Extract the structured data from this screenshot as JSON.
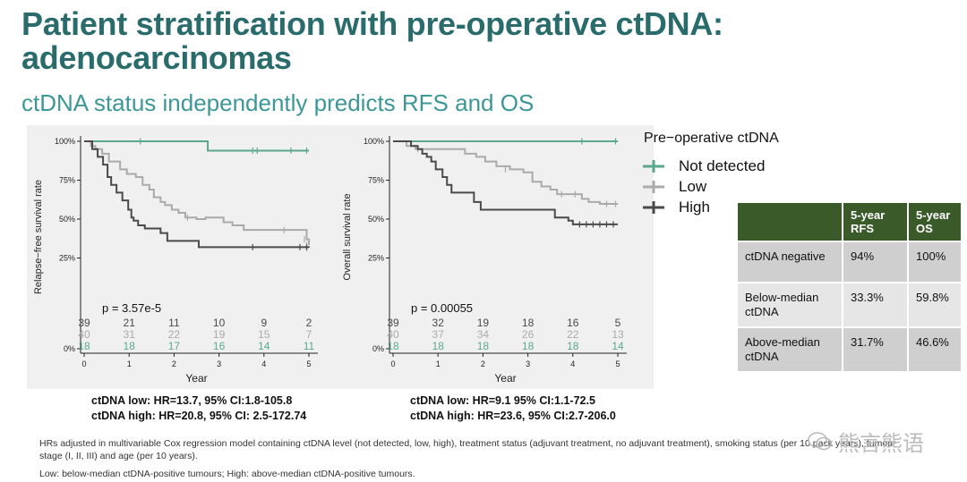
{
  "title_line1": "Patient stratification with pre-operative ctDNA:",
  "title_line2": "adenocarcinomas",
  "subtitle": "ctDNA status independently predicts RFS and OS",
  "legend": {
    "title": "Pre−operative ctDNA",
    "items": [
      {
        "label": "Not detected",
        "color": "#5aa98c"
      },
      {
        "label": "Low",
        "color": "#aaaaaa"
      },
      {
        "label": "High",
        "color": "#4a4a4a"
      }
    ]
  },
  "table": {
    "headers": [
      "",
      "5-year RFS",
      "5-year OS"
    ],
    "rows": [
      [
        "ctDNA negative",
        "94%",
        "100%"
      ],
      [
        "Below-median ctDNA",
        "33.3%",
        "59.8%"
      ],
      [
        "Above-median ctDNA",
        "31.7%",
        "46.6%"
      ]
    ]
  },
  "rfs_hr": {
    "low": "ctDNA low: HR=13.7, 95% CI:1.8-105.8",
    "high": "ctDNA high: HR=20.8, 95% CI: 2.5-172.74"
  },
  "os_hr": {
    "low": "ctDNA low: HR=9.1 95% CI:1.1-72.5",
    "high": "ctDNA high: HR=23.6, 95% CI:2.7-206.0"
  },
  "footnote1": "HRs adjusted in multivariable Cox regression model containing ctDNA level (not detected, low, high), treatment status (adjuvant treatment, no adjuvant treatment), smoking status (per 10 pack years), tumour",
  "footnote2": "stage (I, II, III) and age (per 10 years).",
  "footnote3": "Low: below-median ctDNA-positive tumours; High: above-median ctDNA-positive tumours.",
  "watermark": "熊言熊语",
  "chart_data": [
    {
      "type": "line",
      "subtype": "kaplan-meier",
      "xlabel": "Year",
      "ylabel": "Relapse−free survival rate",
      "xlim": [
        0,
        5
      ],
      "ylim": [
        0,
        1
      ],
      "xticks": [
        0,
        1,
        2,
        3,
        4,
        5
      ],
      "yticks": [
        {
          "v": 0,
          "label": "0%"
        },
        {
          "v": 0.25,
          "label": "25%"
        },
        {
          "v": 0.5,
          "label": "50%"
        },
        {
          "v": 0.75,
          "label": "75%"
        },
        {
          "v": 1,
          "label": "100%"
        }
      ],
      "pvalue": "p = 3.57e-5",
      "series": [
        {
          "name": "Not detected",
          "color": "#5aa98c",
          "steps": [
            [
              0,
              1
            ],
            [
              2.75,
              0.94
            ],
            [
              5,
              0.94
            ]
          ],
          "censors": [
            [
              1.25,
              1
            ],
            [
              3.75,
              0.94
            ],
            [
              3.85,
              0.94
            ],
            [
              4.6,
              0.94
            ],
            [
              4.95,
              0.94
            ]
          ],
          "at_risk": [
            18,
            18,
            17,
            16,
            14,
            11
          ]
        },
        {
          "name": "Low",
          "color": "#aaaaaa",
          "steps": [
            [
              0,
              1
            ],
            [
              0.15,
              0.97
            ],
            [
              0.25,
              0.95
            ],
            [
              0.4,
              0.92
            ],
            [
              0.55,
              0.87
            ],
            [
              0.8,
              0.82
            ],
            [
              0.95,
              0.79
            ],
            [
              1.15,
              0.77
            ],
            [
              1.3,
              0.72
            ],
            [
              1.45,
              0.69
            ],
            [
              1.55,
              0.64
            ],
            [
              1.7,
              0.61
            ],
            [
              1.8,
              0.59
            ],
            [
              1.95,
              0.56
            ],
            [
              2.1,
              0.54
            ],
            [
              2.25,
              0.51
            ],
            [
              2.5,
              0.5
            ],
            [
              2.7,
              0.51
            ],
            [
              3.0,
              0.51
            ],
            [
              3.1,
              0.48
            ],
            [
              3.3,
              0.46
            ],
            [
              3.55,
              0.43
            ],
            [
              4.95,
              0.37
            ],
            [
              5.0,
              0.333
            ]
          ],
          "censors": [
            [
              2.3,
              0.51
            ],
            [
              4.45,
              0.43
            ],
            [
              4.9,
              0.37
            ],
            [
              4.95,
              0.333
            ]
          ],
          "at_risk": [
            40,
            31,
            22,
            19,
            15,
            7
          ]
        },
        {
          "name": "High",
          "color": "#4a4a4a",
          "steps": [
            [
              0,
              1
            ],
            [
              0.18,
              0.95
            ],
            [
              0.3,
              0.9
            ],
            [
              0.42,
              0.85
            ],
            [
              0.52,
              0.77
            ],
            [
              0.6,
              0.72
            ],
            [
              0.72,
              0.67
            ],
            [
              0.85,
              0.62
            ],
            [
              0.98,
              0.56
            ],
            [
              1.05,
              0.51
            ],
            [
              1.1,
              0.49
            ],
            [
              1.2,
              0.46
            ],
            [
              1.35,
              0.44
            ],
            [
              1.7,
              0.41
            ],
            [
              1.85,
              0.36
            ],
            [
              2.55,
              0.32
            ],
            [
              5.0,
              0.317
            ]
          ],
          "censors": [
            [
              3.75,
              0.32
            ],
            [
              4.8,
              0.32
            ],
            [
              4.95,
              0.317
            ]
          ],
          "at_risk": [
            39,
            21,
            11,
            10,
            9,
            2
          ]
        }
      ]
    },
    {
      "type": "line",
      "subtype": "kaplan-meier",
      "xlabel": "Year",
      "ylabel": "Overall survival rate",
      "xlim": [
        0,
        5
      ],
      "ylim": [
        0,
        1
      ],
      "xticks": [
        0,
        1,
        2,
        3,
        4,
        5
      ],
      "yticks": [
        {
          "v": 0,
          "label": "0%"
        },
        {
          "v": 0.25,
          "label": "25%"
        },
        {
          "v": 0.5,
          "label": "50%"
        },
        {
          "v": 0.75,
          "label": "75%"
        },
        {
          "v": 1,
          "label": "100%"
        }
      ],
      "pvalue": "p = 0.00055",
      "series": [
        {
          "name": "Not detected",
          "color": "#5aa98c",
          "steps": [
            [
              0,
              1
            ],
            [
              5,
              1
            ]
          ],
          "censors": [
            [
              4.2,
              1
            ],
            [
              4.95,
              1
            ]
          ],
          "at_risk": [
            18,
            18,
            18,
            18,
            18,
            14
          ]
        },
        {
          "name": "Low",
          "color": "#aaaaaa",
          "steps": [
            [
              0,
              1
            ],
            [
              0.3,
              0.97
            ],
            [
              0.5,
              0.95
            ],
            [
              1.6,
              0.92
            ],
            [
              1.85,
              0.9
            ],
            [
              2.05,
              0.87
            ],
            [
              2.3,
              0.84
            ],
            [
              2.6,
              0.82
            ],
            [
              2.9,
              0.8
            ],
            [
              3.1,
              0.74
            ],
            [
              3.3,
              0.71
            ],
            [
              3.5,
              0.69
            ],
            [
              3.65,
              0.66
            ],
            [
              4.2,
              0.63
            ],
            [
              4.35,
              0.61
            ],
            [
              4.6,
              0.598
            ],
            [
              5.0,
              0.598
            ]
          ],
          "censors": [
            [
              0.55,
              0.95
            ],
            [
              2.5,
              0.82
            ],
            [
              3.75,
              0.66
            ],
            [
              4.05,
              0.66
            ],
            [
              4.75,
              0.598
            ],
            [
              4.95,
              0.598
            ]
          ],
          "at_risk": [
            40,
            37,
            34,
            26,
            22,
            13
          ]
        },
        {
          "name": "High",
          "color": "#4a4a4a",
          "steps": [
            [
              0,
              1
            ],
            [
              0.4,
              0.97
            ],
            [
              0.55,
              0.95
            ],
            [
              0.65,
              0.92
            ],
            [
              0.75,
              0.9
            ],
            [
              0.85,
              0.87
            ],
            [
              0.95,
              0.82
            ],
            [
              1.1,
              0.77
            ],
            [
              1.2,
              0.72
            ],
            [
              1.3,
              0.67
            ],
            [
              1.8,
              0.61
            ],
            [
              1.95,
              0.56
            ],
            [
              3.6,
              0.51
            ],
            [
              3.9,
              0.49
            ],
            [
              4.0,
              0.466
            ],
            [
              5.0,
              0.466
            ]
          ],
          "censors": [
            [
              4.15,
              0.466
            ],
            [
              4.3,
              0.466
            ],
            [
              4.45,
              0.466
            ],
            [
              4.6,
              0.466
            ],
            [
              4.75,
              0.466
            ],
            [
              4.9,
              0.466
            ]
          ],
          "at_risk": [
            39,
            32,
            19,
            18,
            16,
            5
          ]
        }
      ]
    }
  ]
}
